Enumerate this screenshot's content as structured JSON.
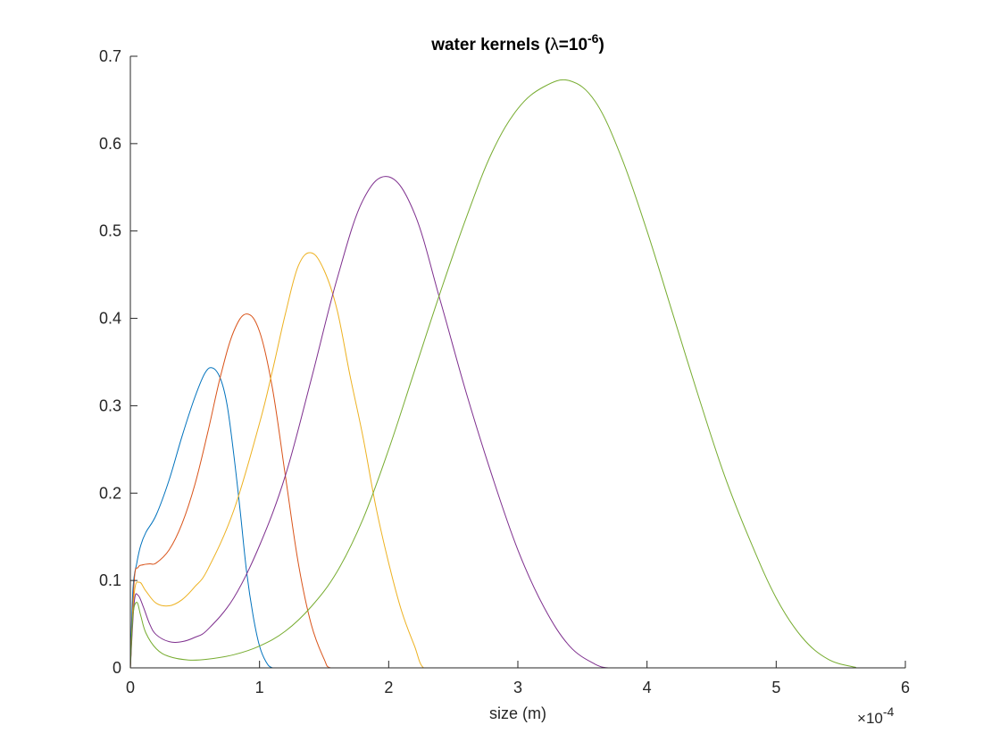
{
  "chart_data": {
    "type": "line",
    "title": {
      "prefix": "water kernels (",
      "symbol": "λ",
      "middle": "=10",
      "superscript": "-6",
      "suffix": ")"
    },
    "xlabel": "size (m)",
    "ylabel": "",
    "x_exponent": {
      "times": "×",
      "base": "10",
      "power": "-4"
    },
    "xlim": [
      0,
      6
    ],
    "ylim": [
      0,
      0.7
    ],
    "x_ticks": [
      0,
      1,
      2,
      3,
      4,
      5,
      6
    ],
    "x_tick_labels": [
      "0",
      "1",
      "2",
      "3",
      "4",
      "5",
      "6"
    ],
    "y_ticks": [
      0,
      0.1,
      0.2,
      0.3,
      0.4,
      0.5,
      0.6,
      0.7
    ],
    "y_tick_labels": [
      "0",
      "0.1",
      "0.2",
      "0.3",
      "0.4",
      "0.5",
      "0.6",
      "0.7"
    ],
    "grid": false,
    "legend": "none",
    "series": [
      {
        "color": "#0072BD",
        "x": [
          0,
          0.02,
          0.05,
          0.08,
          0.12,
          0.2,
          0.3,
          0.4,
          0.5,
          0.58,
          0.64,
          0.7,
          0.75,
          0.8,
          0.85,
          0.9,
          0.95,
          1.0,
          1.05,
          1.1,
          1.2
        ],
        "y": [
          0,
          0.09,
          0.12,
          0.14,
          0.155,
          0.175,
          0.215,
          0.265,
          0.31,
          0.338,
          0.343,
          0.33,
          0.3,
          0.245,
          0.18,
          0.11,
          0.06,
          0.025,
          0.007,
          0,
          0
        ]
      },
      {
        "color": "#D95319",
        "x": [
          0,
          0.03,
          0.06,
          0.1,
          0.15,
          0.2,
          0.3,
          0.4,
          0.5,
          0.6,
          0.7,
          0.8,
          0.9,
          1.0,
          1.1,
          1.2,
          1.3,
          1.4,
          1.5,
          1.55,
          1.7
        ],
        "y": [
          0,
          0.1,
          0.115,
          0.118,
          0.119,
          0.12,
          0.135,
          0.165,
          0.21,
          0.27,
          0.335,
          0.385,
          0.405,
          0.385,
          0.32,
          0.22,
          0.12,
          0.05,
          0.01,
          0,
          0
        ]
      },
      {
        "color": "#EDB120",
        "x": [
          0,
          0.03,
          0.07,
          0.12,
          0.2,
          0.3,
          0.4,
          0.5,
          0.6,
          0.8,
          1.0,
          1.1,
          1.2,
          1.3,
          1.4,
          1.5,
          1.6,
          1.7,
          1.8,
          1.9,
          2.0,
          2.1,
          2.2,
          2.27,
          2.4
        ],
        "y": [
          0,
          0.085,
          0.098,
          0.088,
          0.074,
          0.071,
          0.078,
          0.093,
          0.113,
          0.18,
          0.28,
          0.34,
          0.405,
          0.46,
          0.475,
          0.455,
          0.41,
          0.335,
          0.265,
          0.185,
          0.12,
          0.065,
          0.025,
          0,
          0
        ]
      },
      {
        "color": "#7E2F8E",
        "x": [
          0,
          0.03,
          0.06,
          0.1,
          0.15,
          0.2,
          0.3,
          0.4,
          0.5,
          0.6,
          0.8,
          1.0,
          1.2,
          1.4,
          1.6,
          1.8,
          2.0,
          2.2,
          2.4,
          2.6,
          2.8,
          3.0,
          3.2,
          3.4,
          3.6,
          3.7,
          3.8
        ],
        "y": [
          0,
          0.075,
          0.083,
          0.07,
          0.05,
          0.038,
          0.03,
          0.03,
          0.035,
          0.044,
          0.08,
          0.14,
          0.22,
          0.33,
          0.445,
          0.535,
          0.562,
          0.52,
          0.42,
          0.315,
          0.22,
          0.135,
          0.07,
          0.025,
          0.004,
          0,
          0
        ]
      },
      {
        "color": "#77AC30",
        "x": [
          0,
          0.02,
          0.05,
          0.08,
          0.12,
          0.2,
          0.3,
          0.45,
          0.6,
          0.8,
          1.0,
          1.2,
          1.4,
          1.6,
          1.8,
          2.0,
          2.2,
          2.4,
          2.6,
          2.8,
          3.0,
          3.2,
          3.4,
          3.6,
          3.8,
          4.0,
          4.2,
          4.4,
          4.6,
          4.8,
          5.0,
          5.2,
          5.4,
          5.6,
          5.65,
          6.0
        ],
        "y": [
          0,
          0.06,
          0.075,
          0.06,
          0.04,
          0.022,
          0.013,
          0.009,
          0.01,
          0.015,
          0.025,
          0.042,
          0.07,
          0.11,
          0.17,
          0.25,
          0.34,
          0.43,
          0.515,
          0.59,
          0.64,
          0.665,
          0.672,
          0.648,
          0.585,
          0.5,
          0.405,
          0.31,
          0.22,
          0.145,
          0.08,
          0.035,
          0.01,
          0.001,
          0,
          0
        ]
      }
    ]
  }
}
